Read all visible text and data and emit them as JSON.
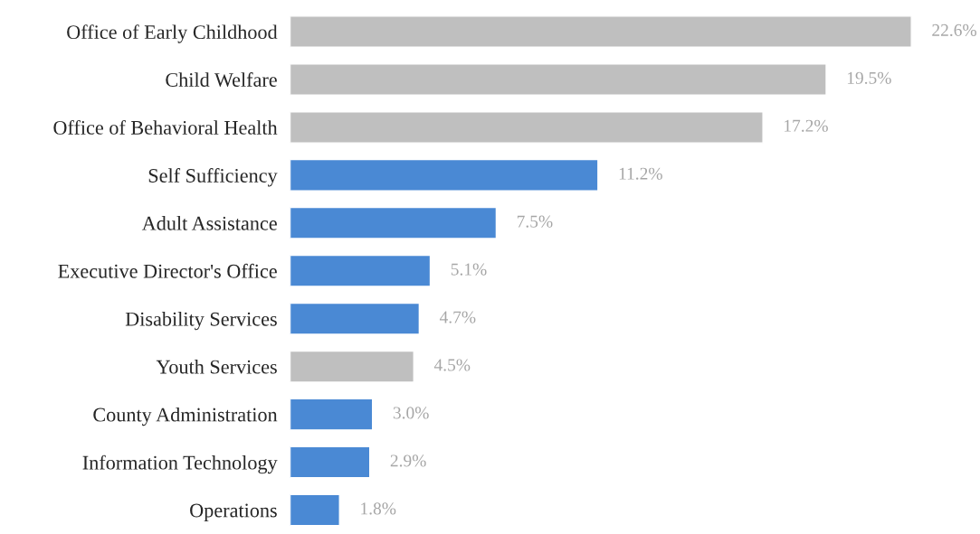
{
  "chart_data": {
    "type": "bar",
    "orientation": "horizontal",
    "categories": [
      "Office of Early Childhood",
      "Child Welfare",
      "Office of Behavioral Health",
      "Self Sufficiency",
      "Adult Assistance",
      "Executive Director's Office",
      "Disability Services",
      "Youth Services",
      "County Administration",
      "Information Technology",
      "Operations"
    ],
    "values": [
      22.6,
      19.5,
      17.2,
      11.2,
      7.5,
      5.1,
      4.7,
      4.5,
      3.0,
      2.9,
      1.8
    ],
    "colors": [
      "#bfbfbf",
      "#bfbfbf",
      "#bfbfbf",
      "#4a89d4",
      "#4a89d4",
      "#4a89d4",
      "#4a89d4",
      "#bfbfbf",
      "#4a89d4",
      "#4a89d4",
      "#4a89d4"
    ],
    "value_labels": [
      "22.6%",
      "19.5%",
      "17.2%",
      "11.2%",
      "7.5%",
      "5.1%",
      "4.7%",
      "4.5%",
      "3.0%",
      "2.9%",
      "1.8%"
    ],
    "tick_labels": "y",
    "grid": false,
    "legend": false
  }
}
